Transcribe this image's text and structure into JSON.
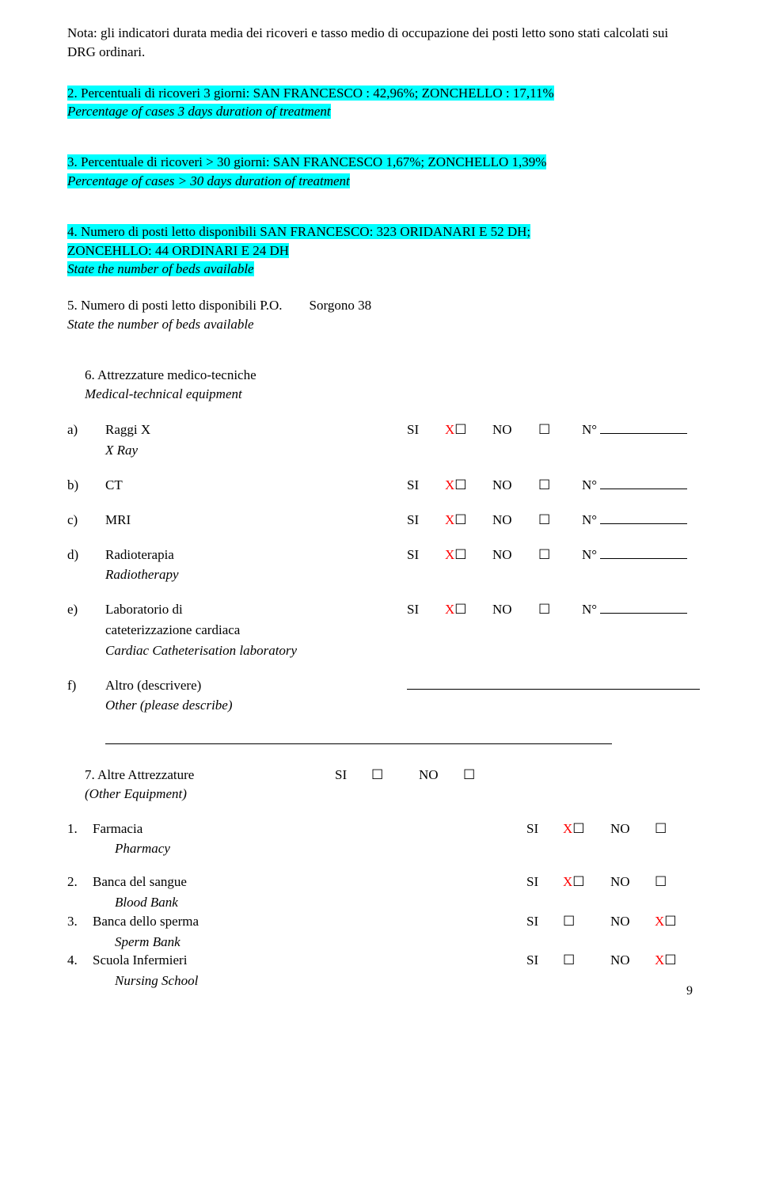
{
  "note_text": "Nota: gli indicatori durata media dei ricoveri e tasso medio di occupazione dei posti letto sono stati calcolati sui DRG ordinari.",
  "q2": {
    "line1": "2.   Percentuali di ricoveri 3 giorni: SAN FRANCESCO : 42,96%; ZONCHELLO : 17,11%",
    "line2": "      Percentage of cases 3 days duration of treatment"
  },
  "q3": {
    "line1": "3.   Percentuale di ricoveri > 30 giorni: SAN FRANCESCO 1,67%; ZONCHELLO 1,39%",
    "line2": "Percentage of cases > 30 days duration of treatment"
  },
  "q4": {
    "line1": "4.   Numero di posti letto disponibili SAN FRANCESCO: 323 ORIDANARI E 52 DH;",
    "line2": "      ZONCEHLLO: 44 ORDINARI E 24 DH",
    "line3": "State the number of beds available"
  },
  "q5": {
    "line1_a": "5.   Numero di posti letto disponibili   P.O.",
    "line1_b": "Sorgono  38",
    "line2": "State the number of beds available"
  },
  "q6": {
    "title": "6.   Attrezzature medico-tecniche",
    "subtitle": "Medical-technical equipment"
  },
  "labels": {
    "SI": "SI",
    "NO": "NO",
    "X": "X",
    "N": "N°",
    "checkbox": "☐"
  },
  "equip": [
    {
      "letter": "a)",
      "label": "Raggi X",
      "sub": "X Ray",
      "x": true
    },
    {
      "letter": "b)",
      "label": "CT",
      "sub": "",
      "x": true
    },
    {
      "letter": "c)",
      "label": "MRI",
      "sub": "",
      "x": true
    },
    {
      "letter": "d)",
      "label": "Radioterapia",
      "sub": "Radiotherapy",
      "x": true
    },
    {
      "letter": "e)",
      "label": "Laboratorio di",
      "sub": "cateterizzazione cardiaca",
      "sub2": "Cardiac Catheterisation laboratory",
      "x": true
    }
  ],
  "f": {
    "letter": "f)",
    "label": "Altro (descrivere)",
    "sub": "Other (please describe)"
  },
  "q7": {
    "title": "7.   Altre Attrezzature",
    "sub": "(Other Equipment)"
  },
  "other": [
    {
      "num": "1.",
      "label": "Farmacia",
      "sub": "Pharmacy",
      "x_si": true,
      "x_no": false
    },
    {
      "num": "2.",
      "label": "Banca del sangue",
      "sub": "Blood Bank",
      "x_si": true,
      "x_no": false
    },
    {
      "num": "3.",
      "label": "Banca dello sperma",
      "sub": "Sperm Bank",
      "x_si": false,
      "x_no": true
    },
    {
      "num": "4.",
      "label": "Scuola Infermieri",
      "sub": "Nursing School",
      "x_si": false,
      "x_no": true
    }
  ],
  "page_number": "9"
}
